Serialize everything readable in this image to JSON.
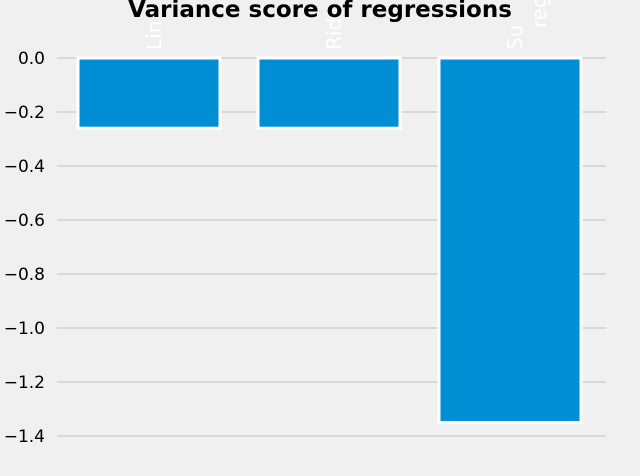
{
  "chart_data": {
    "type": "bar",
    "title": "Variance score of regressions",
    "xlabel": "",
    "ylabel": "",
    "categories": [
      "Linear regression",
      "Ridge regression",
      "Support vector regression"
    ],
    "categories_display": [
      "Lin",
      "Rid",
      "Su"
    ],
    "categories_display_second_line": [
      "",
      "",
      "reg"
    ],
    "values": [
      -0.26,
      -0.26,
      -1.35
    ],
    "ylim": [
      -1.5,
      0.05
    ],
    "yticks": [
      0.0,
      -0.2,
      -0.4,
      -0.6,
      -0.8,
      -1.0,
      -1.2,
      -1.4
    ],
    "ytick_labels": [
      "0.0",
      "−0.2",
      "−0.4",
      "−0.6",
      "−0.8",
      "−1.0",
      "−1.2",
      "−1.4"
    ],
    "grid": "horizontal",
    "legend": "none",
    "bar_color": "#008fd5",
    "background_color": "#f0f0f0",
    "grid_color": "#cbcbcb"
  }
}
